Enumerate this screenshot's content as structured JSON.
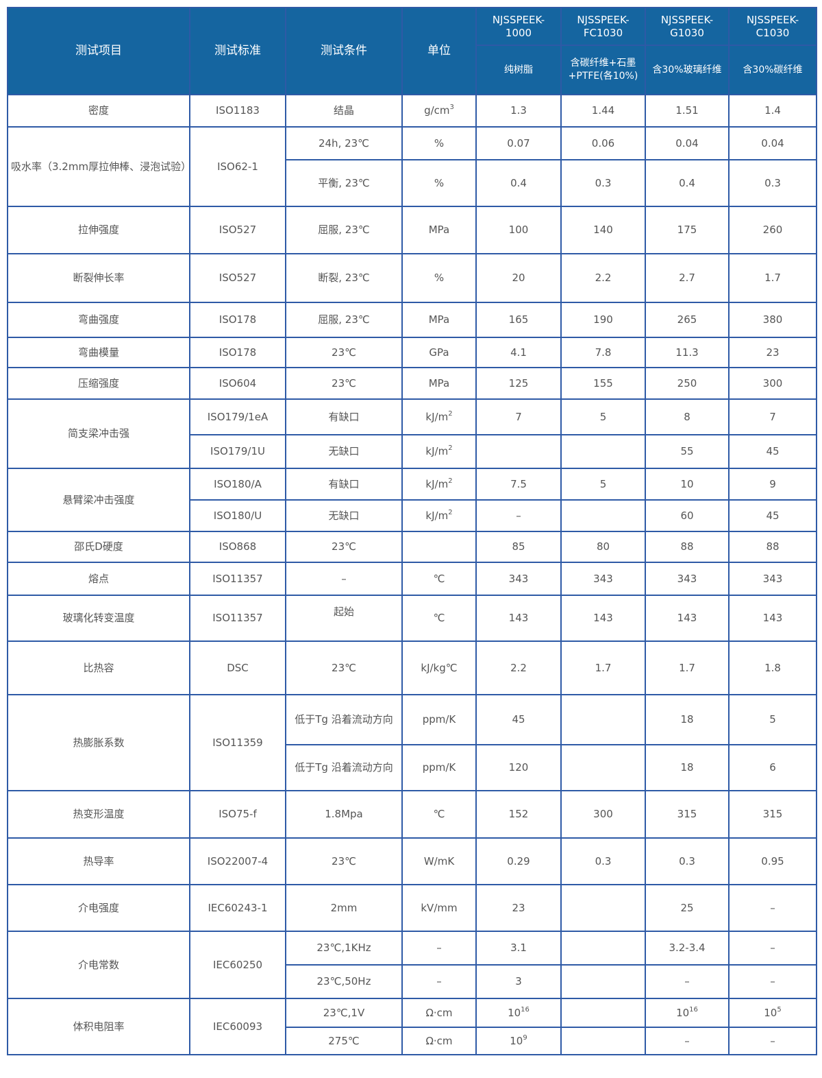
{
  "header": {
    "item": "测试项目",
    "standard": "测试标准",
    "condition": "测试条件",
    "unit": "单位",
    "models": [
      {
        "name": "NJSSPEEK-1000",
        "desc": "纯树脂"
      },
      {
        "name": "NJSSPEEK-FC1030",
        "desc": "含碳纤维+石墨+PTFE(各10%)"
      },
      {
        "name": "NJSSPEEK-G1030",
        "desc": "含30%玻璃纤维"
      },
      {
        "name": "NJSSPEEK-C1030",
        "desc": "含30%碳纤维"
      }
    ]
  },
  "colors": {
    "header_bg": "#1565a0",
    "border": "#2e5aa6",
    "text": "#555555"
  },
  "rows": [
    {
      "item": "密度",
      "standard": "ISO1183",
      "sub": [
        {
          "cond": "结晶",
          "unit": {
            "base": "g/cm",
            "sup": "3"
          },
          "values": [
            "1.3",
            "1.44",
            "1.51",
            "1.4"
          ]
        }
      ]
    },
    {
      "item": "吸水率（3.2mm厚拉伸棒、浸泡试验）",
      "standard": "ISO62-1",
      "sub": [
        {
          "cond": "24h, 23℃",
          "unit": "%",
          "values": [
            "0.07",
            "0.06",
            "0.04",
            "0.04"
          ]
        },
        {
          "cond": "平衡, 23℃",
          "unit": "%",
          "values": [
            "0.4",
            "0.3",
            "0.4",
            "0.3"
          ]
        }
      ]
    },
    {
      "item": "拉伸强度",
      "standard": "ISO527",
      "sub": [
        {
          "cond": "屈服, 23℃",
          "unit": "MPa",
          "values": [
            "100",
            "140",
            "175",
            "260"
          ]
        }
      ]
    },
    {
      "item": "断裂伸长率",
      "standard": "ISO527",
      "sub": [
        {
          "cond": "断裂, 23℃",
          "unit": "%",
          "values": [
            "20",
            "2.2",
            "2.7",
            "1.7"
          ]
        }
      ]
    },
    {
      "item": "弯曲强度",
      "standard": "ISO178",
      "sub": [
        {
          "cond": "屈服, 23℃",
          "unit": "MPa",
          "values": [
            "165",
            "190",
            "265",
            "380"
          ]
        }
      ]
    },
    {
      "item": "弯曲模量",
      "standard": "ISO178",
      "sub": [
        {
          "cond": "23℃",
          "unit": "GPa",
          "values": [
            "4.1",
            "7.8",
            "11.3",
            "23"
          ]
        }
      ]
    },
    {
      "item": "压缩强度",
      "standard": "ISO604",
      "sub": [
        {
          "cond": "23℃",
          "unit": "MPa",
          "values": [
            "125",
            "155",
            "250",
            "300"
          ]
        }
      ]
    },
    {
      "item": "简支梁冲击强",
      "standard": null,
      "sub": [
        {
          "std": "ISO179/1eA",
          "cond": "有缺口",
          "unit": {
            "base": "kJ/m",
            "sup": "2"
          },
          "values": [
            "7",
            "5",
            "8",
            "7"
          ]
        },
        {
          "std": "ISO179/1U",
          "cond": "无缺口",
          "unit": {
            "base": "kJ/m",
            "sup": "2"
          },
          "values": [
            "",
            "",
            "55",
            "45"
          ]
        }
      ]
    },
    {
      "item": "悬臂梁冲击强度",
      "standard": null,
      "sub": [
        {
          "std": "ISO180/A",
          "cond": "有缺口",
          "unit": {
            "base": "kJ/m",
            "sup": "2"
          },
          "values": [
            "7.5",
            "5",
            "10",
            "9"
          ]
        },
        {
          "std": "ISO180/U",
          "cond": "无缺口",
          "unit": {
            "base": "kJ/m",
            "sup": "2"
          },
          "values": [
            "–",
            "",
            "60",
            "45"
          ]
        }
      ]
    },
    {
      "item": "邵氏D硬度",
      "standard": "ISO868",
      "sub": [
        {
          "cond": "23℃",
          "unit": "",
          "values": [
            "85",
            "80",
            "88",
            "88"
          ]
        }
      ]
    },
    {
      "item": "熔点",
      "standard": "ISO11357",
      "sub": [
        {
          "cond": "–",
          "unit": "℃",
          "values": [
            "343",
            "343",
            "343",
            "343"
          ]
        }
      ]
    },
    {
      "item": "玻璃化转变温度",
      "standard": "ISO11357",
      "sub": [
        {
          "cond": "起始",
          "unit": "℃",
          "values": [
            "143",
            "143",
            "143",
            "143"
          ]
        }
      ]
    },
    {
      "item": "比热容",
      "standard": "DSC",
      "sub": [
        {
          "cond": "23℃",
          "unit": "kJ/kg℃",
          "values": [
            "2.2",
            "1.7",
            "1.7",
            "1.8"
          ]
        }
      ]
    },
    {
      "item": "热膨胀系数",
      "standard": "ISO11359",
      "sub": [
        {
          "cond": "低于Tg 沿着流动方向",
          "unit": "ppm/K",
          "values": [
            "45",
            "",
            "18",
            "5"
          ]
        },
        {
          "cond": "低于Tg 沿着流动方向",
          "unit": "ppm/K",
          "values": [
            "120",
            "",
            "18",
            "6"
          ]
        }
      ]
    },
    {
      "item": "热变形温度",
      "standard": "ISO75-f",
      "sub": [
        {
          "cond": "1.8Mpa",
          "unit": "℃",
          "values": [
            "152",
            "300",
            "315",
            "315"
          ]
        }
      ]
    },
    {
      "item": "热导率",
      "standard": "ISO22007-4",
      "sub": [
        {
          "cond": "23℃",
          "unit": "W/mK",
          "values": [
            "0.29",
            "0.3",
            "0.3",
            "0.95"
          ]
        }
      ]
    },
    {
      "item": "介电强度",
      "standard": "IEC60243-1",
      "sub": [
        {
          "cond": "2mm",
          "unit": "kV/mm",
          "values": [
            "23",
            "",
            "25",
            "–"
          ]
        }
      ]
    },
    {
      "item": "介电常数",
      "standard": "IEC60250",
      "sub": [
        {
          "cond": "23℃,1KHz",
          "unit": "–",
          "values": [
            "3.1",
            "",
            "3.2-3.4",
            "–"
          ]
        },
        {
          "cond": "23℃,50Hz",
          "unit": "–",
          "values": [
            "3",
            "",
            "–",
            "–"
          ]
        }
      ]
    },
    {
      "item": "体积电阻率",
      "standard": "IEC60093",
      "sub": [
        {
          "cond": "23℃,1V",
          "unit": "Ω·cm",
          "values": [
            {
              "base": "10",
              "sup": "16"
            },
            "",
            {
              "base": "10",
              "sup": "16"
            },
            {
              "base": "10",
              "sup": "5"
            }
          ]
        },
        {
          "cond": "275℃",
          "unit": "Ω·cm",
          "values": [
            {
              "base": "10",
              "sup": "9"
            },
            "",
            "–",
            "–"
          ]
        }
      ]
    }
  ]
}
